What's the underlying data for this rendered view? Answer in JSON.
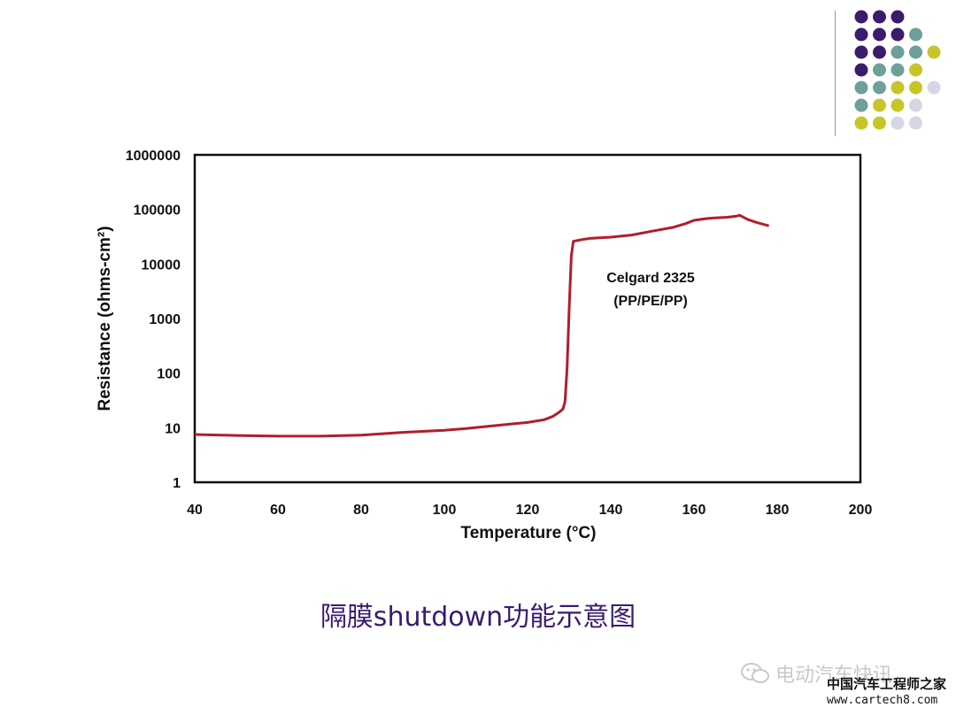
{
  "colors": {
    "curve": "#b01e2b",
    "dot_purple": "#3b1c6b",
    "dot_teal": "#6e9f9a",
    "dot_yellow": "#c6c62a",
    "dot_lavender": "#d6d6e4",
    "caption": "#3a1b6e"
  },
  "decor": {
    "dot_rows": [
      [
        "purple",
        "purple",
        "purple"
      ],
      [
        "purple",
        "purple",
        "purple",
        "teal"
      ],
      [
        "purple",
        "purple",
        "teal",
        "teal",
        "yellow"
      ],
      [
        "purple",
        "teal",
        "teal",
        "yellow"
      ],
      [
        "teal",
        "teal",
        "yellow",
        "yellow",
        "lavender"
      ],
      [
        "teal",
        "yellow",
        "yellow",
        "lavender"
      ],
      [
        "yellow",
        "yellow",
        "lavender",
        "lavender"
      ]
    ]
  },
  "chart_data": {
    "type": "line",
    "xlabel": "Temperature (°C)",
    "ylabel": "Resistance (ohms-cm²)",
    "xlim": [
      40,
      200
    ],
    "ylim": [
      1,
      1000000
    ],
    "yscale": "log",
    "grid": false,
    "x_ticks": [
      "40",
      "60",
      "80",
      "100",
      "120",
      "140",
      "160",
      "180",
      "200"
    ],
    "y_ticks": [
      "1",
      "10",
      "100",
      "1000",
      "10000",
      "100000",
      "1000000"
    ],
    "annotation": [
      "Celgard 2325",
      "(PP/PE/PP)"
    ],
    "series": [
      {
        "x": [
          40,
          50,
          60,
          70,
          80,
          90,
          100,
          105,
          110,
          115,
          120,
          124,
          126,
          127.5,
          128.5,
          129,
          129.5,
          130,
          130.5,
          131,
          133,
          135,
          140,
          145,
          150,
          155,
          158,
          160,
          163,
          165,
          168,
          170,
          171,
          173,
          175,
          178
        ],
        "y": [
          7.5,
          7.2,
          7.0,
          7.0,
          7.3,
          8.2,
          9.0,
          9.6,
          10.5,
          11.5,
          12.5,
          14,
          16,
          19,
          22,
          30,
          120,
          1500,
          14000,
          26000,
          28000,
          29500,
          31000,
          34000,
          40000,
          47000,
          55000,
          63000,
          68000,
          70000,
          72000,
          75000,
          78000,
          65000,
          58000,
          50000
        ]
      }
    ]
  },
  "caption": "隔膜shutdown功能示意图",
  "watermarks": {
    "channel": "电动汽车快讯",
    "site_name": "中国汽车工程师之家",
    "url": "www.cartech8.com"
  }
}
